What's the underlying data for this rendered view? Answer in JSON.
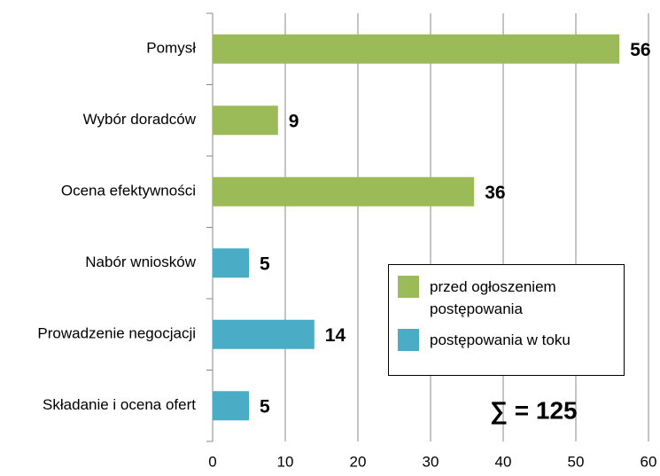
{
  "chart_data": {
    "type": "bar",
    "orientation": "horizontal",
    "categories": [
      "Pomysł",
      "Wybór doradców",
      "Ocena efektywności",
      "Nabór wniosków",
      "Prowadzenie negocjacji",
      "Składanie i ocena ofert"
    ],
    "series": [
      {
        "name": "przed ogłoszeniem postępowania",
        "color": "#9bbb59",
        "values": [
          56,
          9,
          36,
          null,
          null,
          null
        ]
      },
      {
        "name": "postępowania w toku",
        "color": "#4bacc6",
        "values": [
          null,
          null,
          null,
          5,
          14,
          5
        ]
      }
    ],
    "xlim": [
      0,
      60
    ],
    "xticks": [
      0,
      10,
      20,
      30,
      40,
      50,
      60
    ],
    "grid": true,
    "annotation": "∑ = 125"
  }
}
